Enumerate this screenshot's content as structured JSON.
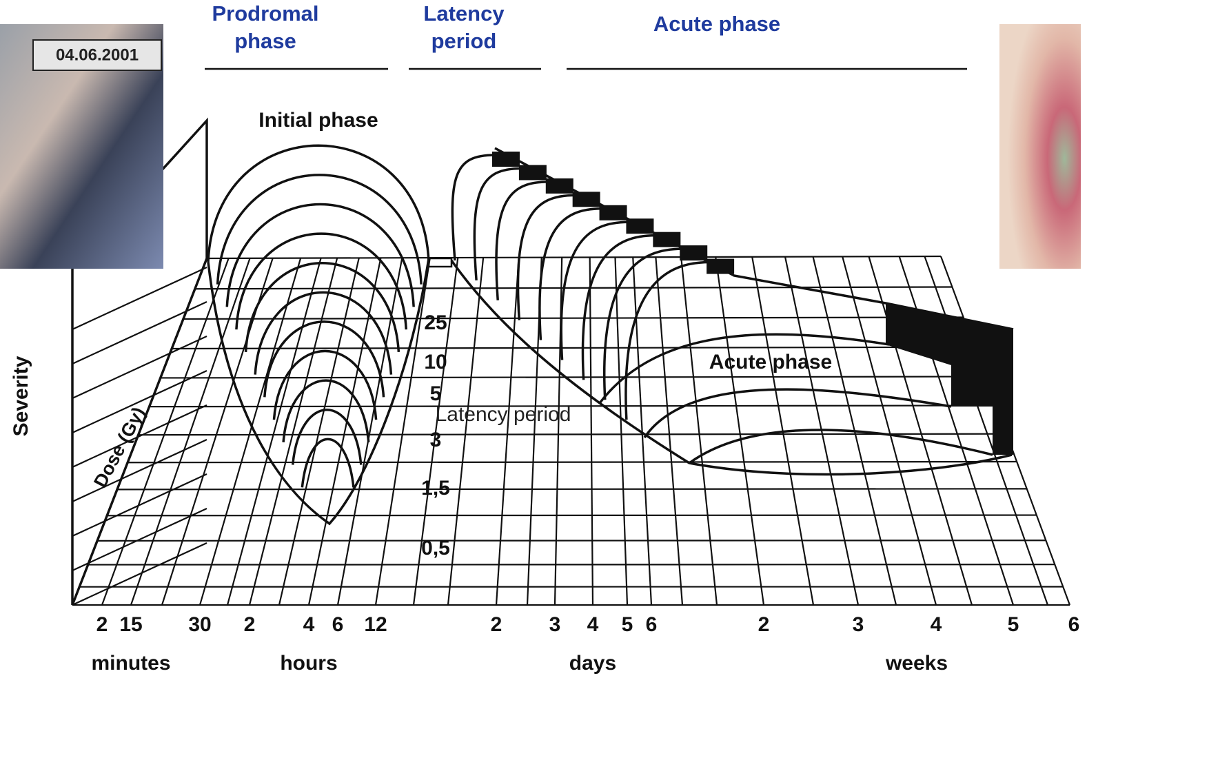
{
  "phase_headers": [
    {
      "lines": [
        "Prodromal",
        "phase"
      ]
    },
    {
      "lines": [
        "Latency",
        "period"
      ]
    },
    {
      "lines": [
        "Acute phase"
      ]
    }
  ],
  "photo_date": "04.06.2001",
  "diagram": {
    "initial_phase": "Initial phase",
    "acute_phase": "Acute phase",
    "latency_period": "Latency period",
    "y_axis": "Severity",
    "dose_axis": "Dose (Gy)",
    "dose_labels": [
      "25",
      "10",
      "5",
      "3",
      "1,5",
      "0,5"
    ]
  },
  "time_axis": [
    {
      "unit": "minutes",
      "ticks": [
        "2",
        "15",
        "30"
      ]
    },
    {
      "unit": "hours",
      "ticks": [
        "2",
        "4",
        "6",
        "12"
      ]
    },
    {
      "unit": "days",
      "ticks": [
        "2",
        "3",
        "4",
        "5",
        "6"
      ]
    },
    {
      "unit": "weeks",
      "ticks": [
        "2",
        "3",
        "4",
        "5",
        "6"
      ]
    }
  ]
}
